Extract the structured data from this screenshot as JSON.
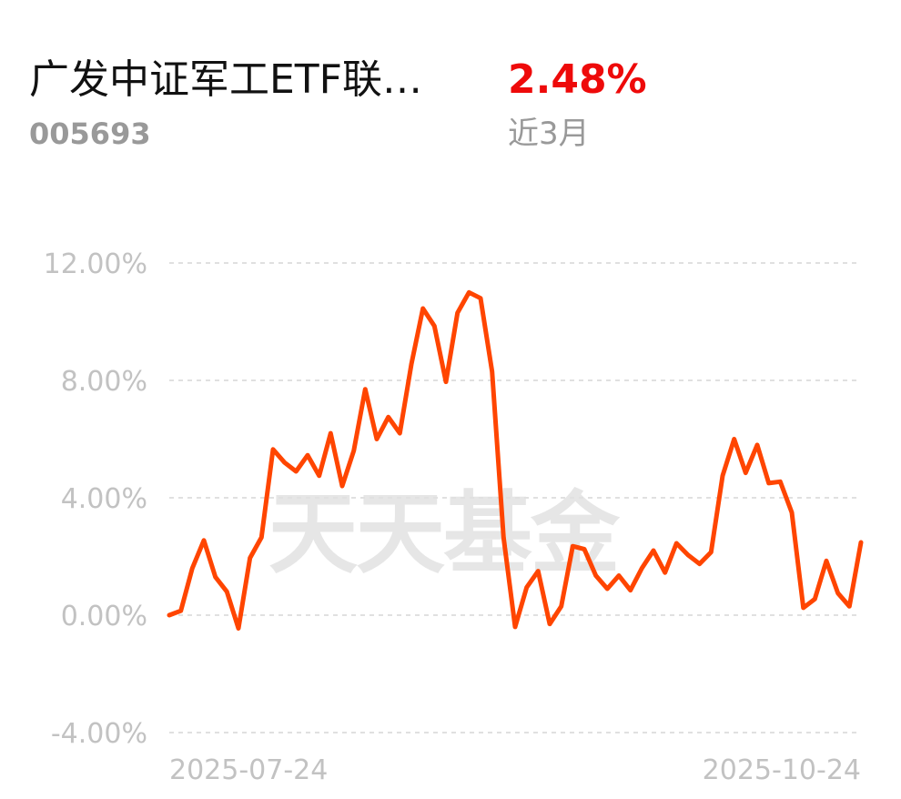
{
  "header": {
    "fund_name": "广发中证军工ETF联…",
    "fund_code": "005693",
    "return_value": "2.48%",
    "return_period": "近3月"
  },
  "watermark": "天天基金",
  "colors": {
    "line": "#ff4500",
    "positive": "#ee0a0a",
    "grid": "#e0e0e0",
    "muted": "#999999"
  },
  "chart_data": {
    "type": "line",
    "title": "",
    "xlabel": "",
    "ylabel": "",
    "ylim": [
      -4,
      12
    ],
    "y_ticks": [
      12,
      8,
      4,
      0,
      -4
    ],
    "y_tick_labels": [
      "12.00%",
      "8.00%",
      "4.00%",
      "0.00%",
      "-4.00%"
    ],
    "x_tick_labels": [
      "2025-07-24",
      "2025-10-24"
    ],
    "grid": true,
    "series": [
      {
        "values": [
          0.0,
          0.15,
          1.6,
          2.55,
          1.3,
          0.8,
          -0.45,
          1.95,
          2.65,
          5.65,
          5.2,
          4.9,
          5.45,
          4.75,
          6.2,
          4.4,
          5.6,
          7.7,
          6.0,
          6.75,
          6.2,
          8.55,
          10.45,
          9.85,
          7.95,
          10.3,
          11.0,
          10.8,
          8.3,
          2.65,
          -0.4,
          0.95,
          1.5,
          -0.3,
          0.3,
          2.35,
          2.25,
          1.35,
          0.9,
          1.35,
          0.85,
          1.6,
          2.2,
          1.45,
          2.45,
          2.05,
          1.75,
          2.15,
          4.75,
          6.0,
          4.85,
          5.8,
          4.5,
          4.55,
          3.5,
          0.25,
          0.55,
          1.85,
          0.75,
          0.3,
          2.48
        ]
      }
    ]
  }
}
